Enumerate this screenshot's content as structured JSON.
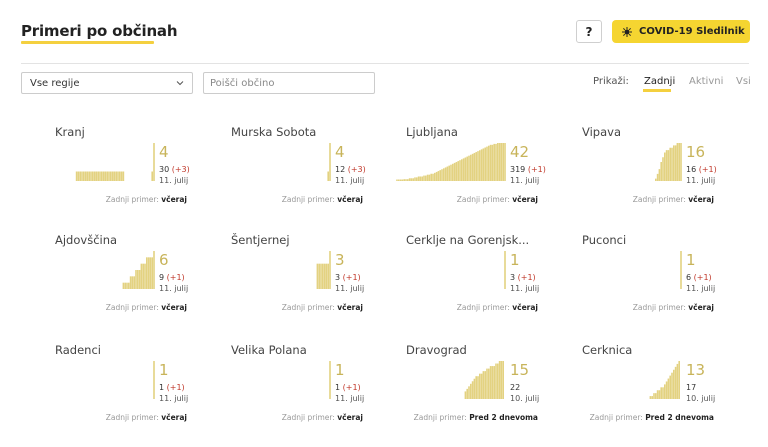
{
  "header": {
    "title": "Primeri po občinah"
  },
  "help_label": "?",
  "tracker": {
    "label": "COVID-19 Sledilnik",
    "icon": "virus-icon",
    "color": "#f5d531"
  },
  "filters": {
    "region_select": "Vse regije",
    "search_placeholder": "Poišči občino",
    "show_label": "Prikaži:",
    "options": [
      "Zadnji",
      "Aktivni",
      "Vsi"
    ],
    "active_option": "Zadnji"
  },
  "colors": {
    "bar": "#e3d281",
    "bar_strong": "#d4bf5c",
    "total": "#c8b45a",
    "delta": "#c0392b",
    "accent": "#f4d03f"
  },
  "last_case_label": "Zadnji primer:",
  "municipalities": [
    {
      "name": "Kranj",
      "total": "4",
      "cases": "30",
      "delta": "(+3)",
      "date": "11. julij",
      "last": "včeraj",
      "bars": [
        0,
        0,
        0,
        0,
        0,
        0,
        0,
        0,
        0,
        0,
        0,
        0,
        0,
        0,
        0,
        0,
        0,
        1,
        1,
        1,
        1,
        1,
        1,
        1,
        1,
        1,
        1,
        1,
        1,
        1,
        1,
        1,
        1,
        1,
        1,
        1,
        1,
        1,
        1,
        1,
        1,
        1,
        1,
        1,
        0,
        0,
        0,
        0,
        0,
        0,
        0,
        0,
        0,
        0,
        0,
        0,
        0,
        0,
        0,
        1,
        4
      ]
    },
    {
      "name": "Murska Sobota",
      "total": "4",
      "cases": "12",
      "delta": "(+3)",
      "date": "11. julij",
      "last": "včeraj",
      "bars": [
        0,
        0,
        0,
        0,
        0,
        0,
        0,
        0,
        0,
        0,
        0,
        0,
        0,
        0,
        0,
        0,
        0,
        0,
        0,
        0,
        0,
        0,
        0,
        0,
        0,
        0,
        0,
        0,
        0,
        0,
        0,
        0,
        0,
        0,
        0,
        0,
        0,
        0,
        0,
        0,
        0,
        0,
        0,
        0,
        0,
        0,
        0,
        0,
        0,
        0,
        0,
        0,
        0,
        0,
        0,
        0,
        0,
        0,
        0,
        1,
        4
      ]
    },
    {
      "name": "Ljubljana",
      "total": "42",
      "cases": "319",
      "delta": "(+1)",
      "date": "11. julij",
      "last": "včeraj",
      "bars": [
        1,
        1,
        1,
        1,
        2,
        2,
        2,
        3,
        3,
        3,
        4,
        4,
        5,
        5,
        5,
        6,
        6,
        7,
        7,
        8,
        8,
        9,
        10,
        11,
        12,
        13,
        14,
        15,
        16,
        17,
        18,
        19,
        20,
        21,
        22,
        23,
        24,
        25,
        26,
        27,
        28,
        29,
        30,
        31,
        32,
        33,
        34,
        35,
        36,
        37,
        38,
        39,
        40,
        40,
        41,
        41,
        42,
        42,
        42,
        42,
        42
      ]
    },
    {
      "name": "Vipava",
      "total": "16",
      "cases": "16",
      "delta": "(+1)",
      "date": "11. julij",
      "last": "včeraj",
      "bars": [
        0,
        0,
        0,
        0,
        0,
        0,
        0,
        0,
        0,
        0,
        0,
        0,
        0,
        0,
        0,
        0,
        0,
        0,
        0,
        0,
        0,
        0,
        0,
        0,
        0,
        0,
        0,
        0,
        0,
        0,
        0,
        0,
        0,
        0,
        0,
        0,
        0,
        0,
        0,
        0,
        0,
        0,
        0,
        0,
        0,
        0,
        1,
        3,
        5,
        8,
        10,
        12,
        13,
        13,
        14,
        14,
        15,
        15,
        16,
        16,
        16
      ]
    },
    {
      "name": "Ajdovščina",
      "total": "6",
      "cases": "9",
      "delta": "(+1)",
      "date": "11. julij",
      "last": "včeraj",
      "bars": [
        0,
        0,
        0,
        0,
        0,
        0,
        0,
        0,
        0,
        0,
        0,
        0,
        0,
        0,
        0,
        0,
        0,
        0,
        0,
        0,
        0,
        0,
        0,
        0,
        0,
        0,
        0,
        0,
        0,
        0,
        0,
        0,
        0,
        0,
        0,
        0,
        0,
        0,
        0,
        0,
        0,
        0,
        0,
        1,
        1,
        1,
        1,
        2,
        2,
        2,
        3,
        3,
        3,
        4,
        4,
        4,
        5,
        5,
        5,
        5,
        6
      ]
    },
    {
      "name": "Šentjernej",
      "total": "3",
      "cases": "3",
      "delta": "(+1)",
      "date": "11. julij",
      "last": "včeraj",
      "bars": [
        0,
        0,
        0,
        0,
        0,
        0,
        0,
        0,
        0,
        0,
        0,
        0,
        0,
        0,
        0,
        0,
        0,
        0,
        0,
        0,
        0,
        0,
        0,
        0,
        0,
        0,
        0,
        0,
        0,
        0,
        0,
        0,
        0,
        0,
        0,
        0,
        0,
        0,
        0,
        0,
        0,
        0,
        0,
        0,
        0,
        0,
        0,
        0,
        0,
        0,
        0,
        0,
        0,
        2,
        2,
        2,
        2,
        2,
        2,
        2,
        3
      ]
    },
    {
      "name": "Cerklje na Gorenjsk...",
      "total": "1",
      "cases": "3",
      "delta": "(+1)",
      "date": "11. julij",
      "last": "včeraj",
      "bars": [
        0,
        0,
        0,
        0,
        0,
        0,
        0,
        0,
        0,
        0,
        0,
        0,
        0,
        0,
        0,
        0,
        0,
        0,
        0,
        0,
        0,
        0,
        0,
        0,
        0,
        0,
        0,
        0,
        0,
        0,
        0,
        0,
        0,
        0,
        0,
        0,
        0,
        0,
        0,
        0,
        0,
        0,
        0,
        0,
        0,
        0,
        0,
        0,
        0,
        0,
        0,
        0,
        0,
        0,
        0,
        0,
        0,
        0,
        0,
        0,
        1
      ]
    },
    {
      "name": "Puconci",
      "total": "1",
      "cases": "6",
      "delta": "(+1)",
      "date": "11. julij",
      "last": "včeraj",
      "bars": [
        0,
        0,
        0,
        0,
        0,
        0,
        0,
        0,
        0,
        0,
        0,
        0,
        0,
        0,
        0,
        0,
        0,
        0,
        0,
        0,
        0,
        0,
        0,
        0,
        0,
        0,
        0,
        0,
        0,
        0,
        0,
        0,
        0,
        0,
        0,
        0,
        0,
        0,
        0,
        0,
        0,
        0,
        0,
        0,
        0,
        0,
        0,
        0,
        0,
        0,
        0,
        0,
        0,
        0,
        0,
        0,
        0,
        0,
        0,
        0,
        1
      ]
    },
    {
      "name": "Radenci",
      "total": "1",
      "cases": "1",
      "delta": "(+1)",
      "date": "11. julij",
      "last": "včeraj",
      "bars": [
        0,
        0,
        0,
        0,
        0,
        0,
        0,
        0,
        0,
        0,
        0,
        0,
        0,
        0,
        0,
        0,
        0,
        0,
        0,
        0,
        0,
        0,
        0,
        0,
        0,
        0,
        0,
        0,
        0,
        0,
        0,
        0,
        0,
        0,
        0,
        0,
        0,
        0,
        0,
        0,
        0,
        0,
        0,
        0,
        0,
        0,
        0,
        0,
        0,
        0,
        0,
        0,
        0,
        0,
        0,
        0,
        0,
        0,
        0,
        0,
        1
      ]
    },
    {
      "name": "Velika Polana",
      "total": "1",
      "cases": "1",
      "delta": "(+1)",
      "date": "11. julij",
      "last": "včeraj",
      "bars": [
        0,
        0,
        0,
        0,
        0,
        0,
        0,
        0,
        0,
        0,
        0,
        0,
        0,
        0,
        0,
        0,
        0,
        0,
        0,
        0,
        0,
        0,
        0,
        0,
        0,
        0,
        0,
        0,
        0,
        0,
        0,
        0,
        0,
        0,
        0,
        0,
        0,
        0,
        0,
        0,
        0,
        0,
        0,
        0,
        0,
        0,
        0,
        0,
        0,
        0,
        0,
        0,
        0,
        0,
        0,
        0,
        0,
        0,
        0,
        0,
        1
      ]
    },
    {
      "name": "Dravograd",
      "total": "15",
      "cases": "22",
      "delta": "",
      "date": "10. julij",
      "last": "Pred 2 dnevoma",
      "bars": [
        0,
        0,
        0,
        0,
        0,
        0,
        0,
        0,
        0,
        0,
        0,
        0,
        0,
        0,
        0,
        0,
        0,
        0,
        0,
        0,
        0,
        0,
        0,
        0,
        0,
        0,
        0,
        0,
        0,
        0,
        0,
        0,
        0,
        0,
        0,
        0,
        0,
        0,
        3,
        4,
        5,
        6,
        7,
        8,
        9,
        9,
        10,
        10,
        11,
        11,
        12,
        12,
        13,
        13,
        13,
        14,
        14,
        15,
        15,
        15,
        0
      ]
    },
    {
      "name": "Cerknica",
      "total": "13",
      "cases": "17",
      "delta": "",
      "date": "10. julij",
      "last": "Pred 2 dnevoma",
      "bars": [
        0,
        0,
        0,
        0,
        0,
        0,
        0,
        0,
        0,
        0,
        0,
        0,
        0,
        0,
        0,
        0,
        0,
        0,
        0,
        0,
        0,
        0,
        0,
        0,
        0,
        0,
        0,
        0,
        0,
        0,
        0,
        0,
        0,
        0,
        0,
        0,
        0,
        0,
        0,
        0,
        0,
        0,
        0,
        1,
        1,
        2,
        2,
        3,
        3,
        4,
        4,
        5,
        6,
        7,
        8,
        9,
        10,
        11,
        12,
        13,
        0
      ]
    }
  ]
}
